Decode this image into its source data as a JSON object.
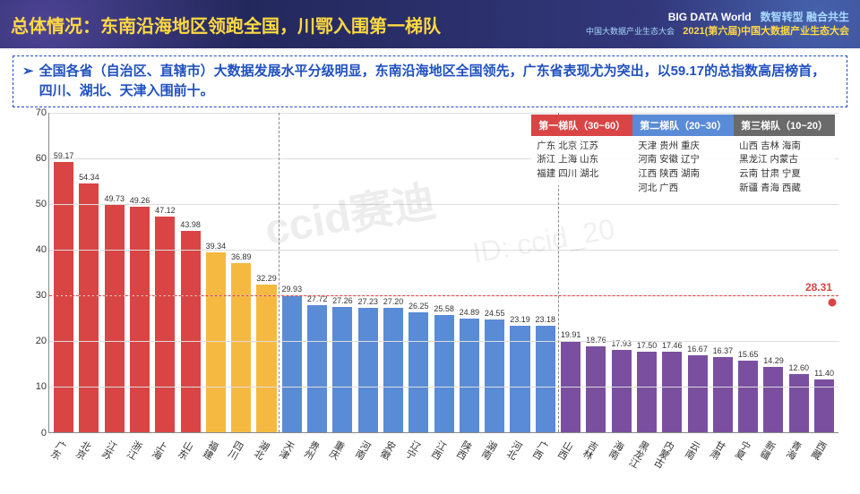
{
  "header": {
    "title": "总体情况：东南沿海地区领跑全国，川鄂入围第一梯队",
    "logo": "BIG DATA World",
    "logo_sub": "中国大数据产业生态大会",
    "tagline": "数智转型 融合共生",
    "conference": "2021(第六届)中国大数据产业生态大会"
  },
  "summary": "全国各省（自治区、直辖市）大数据发展水平分级明显，东南沿海地区全国领先，广东省表现尤为突出，以59.17的总指数高居榜首，四川、湖北、天津入围前十。",
  "chart": {
    "type": "bar",
    "ylim": [
      0,
      70
    ],
    "ytick_step": 10,
    "dash_y": 30,
    "tier1_color": "#d94545",
    "tier1b_color": "#f5b942",
    "tier2_color": "#5a8bd6",
    "tier3_color": "#7a4fa0",
    "grid_color": "#dddddd",
    "final_point": {
      "value": 28.31,
      "label": "28.31"
    },
    "bars": [
      {
        "name": "广东",
        "value": 59.17,
        "tier": 1
      },
      {
        "name": "北京",
        "value": 54.34,
        "tier": 1
      },
      {
        "name": "江苏",
        "value": 49.73,
        "tier": 1
      },
      {
        "name": "浙江",
        "value": 49.26,
        "tier": 1
      },
      {
        "name": "上海",
        "value": 47.12,
        "tier": 1
      },
      {
        "name": "山东",
        "value": 43.98,
        "tier": 1
      },
      {
        "name": "福建",
        "value": 39.34,
        "tier": "1b"
      },
      {
        "name": "四川",
        "value": 36.89,
        "tier": "1b"
      },
      {
        "name": "湖北",
        "value": 32.29,
        "tier": "1b"
      },
      {
        "name": "天津",
        "value": 29.93,
        "tier": 2
      },
      {
        "name": "贵州",
        "value": 27.72,
        "tier": 2
      },
      {
        "name": "重庆",
        "value": 27.26,
        "tier": 2
      },
      {
        "name": "河南",
        "value": 27.23,
        "tier": 2
      },
      {
        "name": "安徽",
        "value": 27.2,
        "tier": 2
      },
      {
        "name": "辽宁",
        "value": 26.25,
        "tier": 2
      },
      {
        "name": "江西",
        "value": 25.58,
        "tier": 2
      },
      {
        "name": "陕西",
        "value": 24.89,
        "tier": 2
      },
      {
        "name": "湖南",
        "value": 24.55,
        "tier": 2
      },
      {
        "name": "河北",
        "value": 23.19,
        "tier": 2
      },
      {
        "name": "广西",
        "value": 23.18,
        "tier": 2
      },
      {
        "name": "山西",
        "value": 19.91,
        "tier": 3
      },
      {
        "name": "吉林",
        "value": 18.76,
        "tier": 3
      },
      {
        "name": "海南",
        "value": 17.93,
        "tier": 3
      },
      {
        "name": "黑龙江",
        "value": 17.5,
        "tier": 3
      },
      {
        "name": "内蒙古",
        "value": 17.46,
        "tier": 3
      },
      {
        "name": "云南",
        "value": 16.67,
        "tier": 3
      },
      {
        "name": "甘肃",
        "value": 16.37,
        "tier": 3
      },
      {
        "name": "宁夏",
        "value": 15.65,
        "tier": 3
      },
      {
        "name": "新疆",
        "value": 14.29,
        "tier": 3
      },
      {
        "name": "青海",
        "value": 12.6,
        "tier": 3
      },
      {
        "name": "西藏",
        "value": 11.4,
        "tier": 3
      }
    ],
    "separators": [
      9,
      20
    ],
    "legend": [
      {
        "title": "第一梯队（30~60）",
        "color": "#d94545",
        "lines": [
          "广东 北京 江苏",
          "浙江 上海 山东",
          "福建 四川 湖北"
        ]
      },
      {
        "title": "第二梯队（20~30）",
        "color": "#5a8bd6",
        "lines": [
          "天津 贵州 重庆",
          "河南 安徽 辽宁",
          "江西 陕西 湖南",
          "河北 广西"
        ]
      },
      {
        "title": "第三梯队（10~20）",
        "color": "#6a6a6a",
        "lines": [
          "山西 吉林 海南",
          "黑龙江 内蒙古",
          "云南 甘肃 宁夏",
          "新疆 青海 西藏"
        ]
      }
    ]
  },
  "watermark": "ccid赛迪",
  "watermark2": "ID: ccid_20"
}
